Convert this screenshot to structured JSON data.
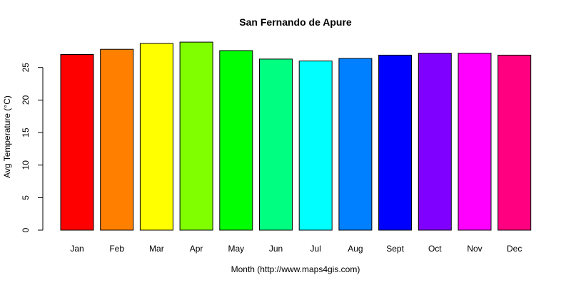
{
  "chart_data": {
    "type": "bar",
    "title": "San Fernando de Apure",
    "xlabel": "Month (http://www.maps4gis.com)",
    "ylabel": "Avg Temperature (°C)",
    "categories": [
      "Jan",
      "Feb",
      "Mar",
      "Apr",
      "May",
      "Jun",
      "Jul",
      "Aug",
      "Sept",
      "Oct",
      "Nov",
      "Dec"
    ],
    "values": [
      27.0,
      27.8,
      28.7,
      28.9,
      27.6,
      26.3,
      26.0,
      26.4,
      26.9,
      27.2,
      27.2,
      26.9
    ],
    "colors": [
      "#FF0000",
      "#FF8000",
      "#FFFF00",
      "#80FF00",
      "#00FF00",
      "#00FF80",
      "#00FFFF",
      "#0080FF",
      "#0000FF",
      "#8000FF",
      "#FF00FF",
      "#FF0080"
    ],
    "yticks": [
      0,
      5,
      10,
      15,
      20,
      25
    ],
    "ylim": [
      0,
      29
    ],
    "grid": false,
    "legend": "none"
  }
}
